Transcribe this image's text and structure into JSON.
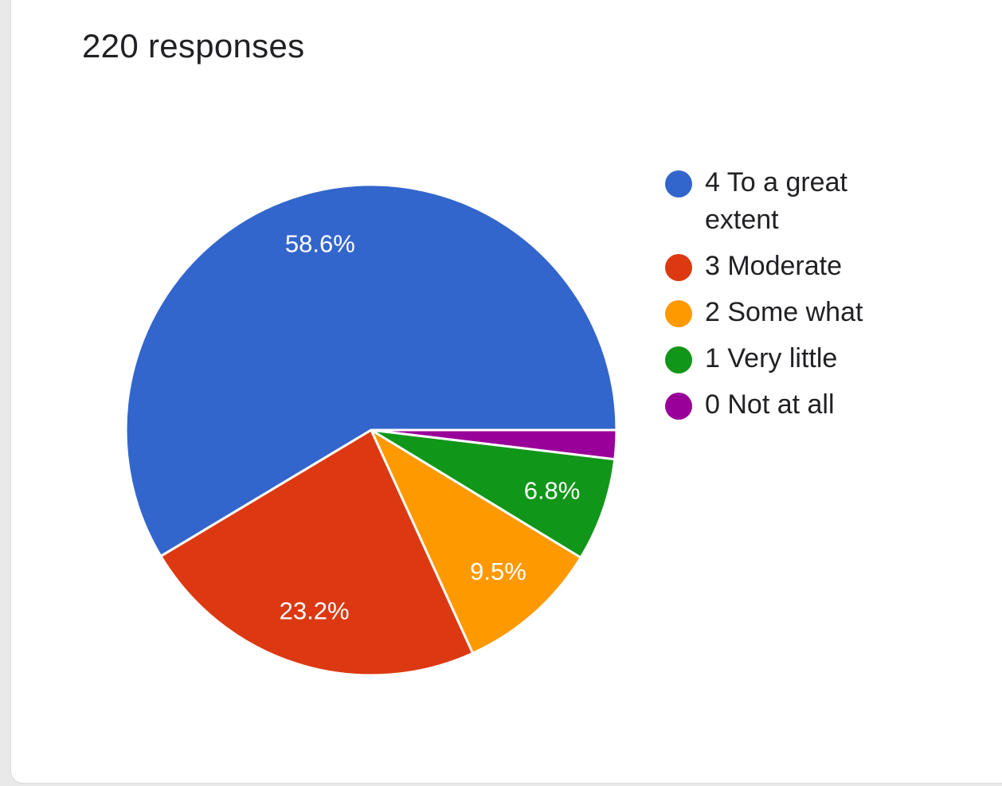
{
  "header": {
    "responses_label": "220 responses"
  },
  "chart_data": {
    "type": "pie",
    "title": "",
    "start_angle_deg": 0,
    "direction": "counterclockwise",
    "legend_position": "right",
    "slices": [
      {
        "label": "4 To a great extent",
        "value": 58.6,
        "display": "58.6%",
        "color": "#3366cc"
      },
      {
        "label": "3 Moderate",
        "value": 23.2,
        "display": "23.2%",
        "color": "#dc3912"
      },
      {
        "label": "2 Some what",
        "value": 9.5,
        "display": "9.5%",
        "color": "#ff9900"
      },
      {
        "label": "1 Very little",
        "value": 6.8,
        "display": "6.8%",
        "color": "#109618"
      },
      {
        "label": "0 Not at all",
        "value": 1.9,
        "display": "",
        "color": "#990099"
      }
    ],
    "legend_lines": [
      [
        "4 To a great",
        "extent"
      ],
      [
        "3 Moderate"
      ],
      [
        "2 Some what"
      ],
      [
        "1 Very little"
      ],
      [
        "0 Not at all"
      ]
    ]
  }
}
